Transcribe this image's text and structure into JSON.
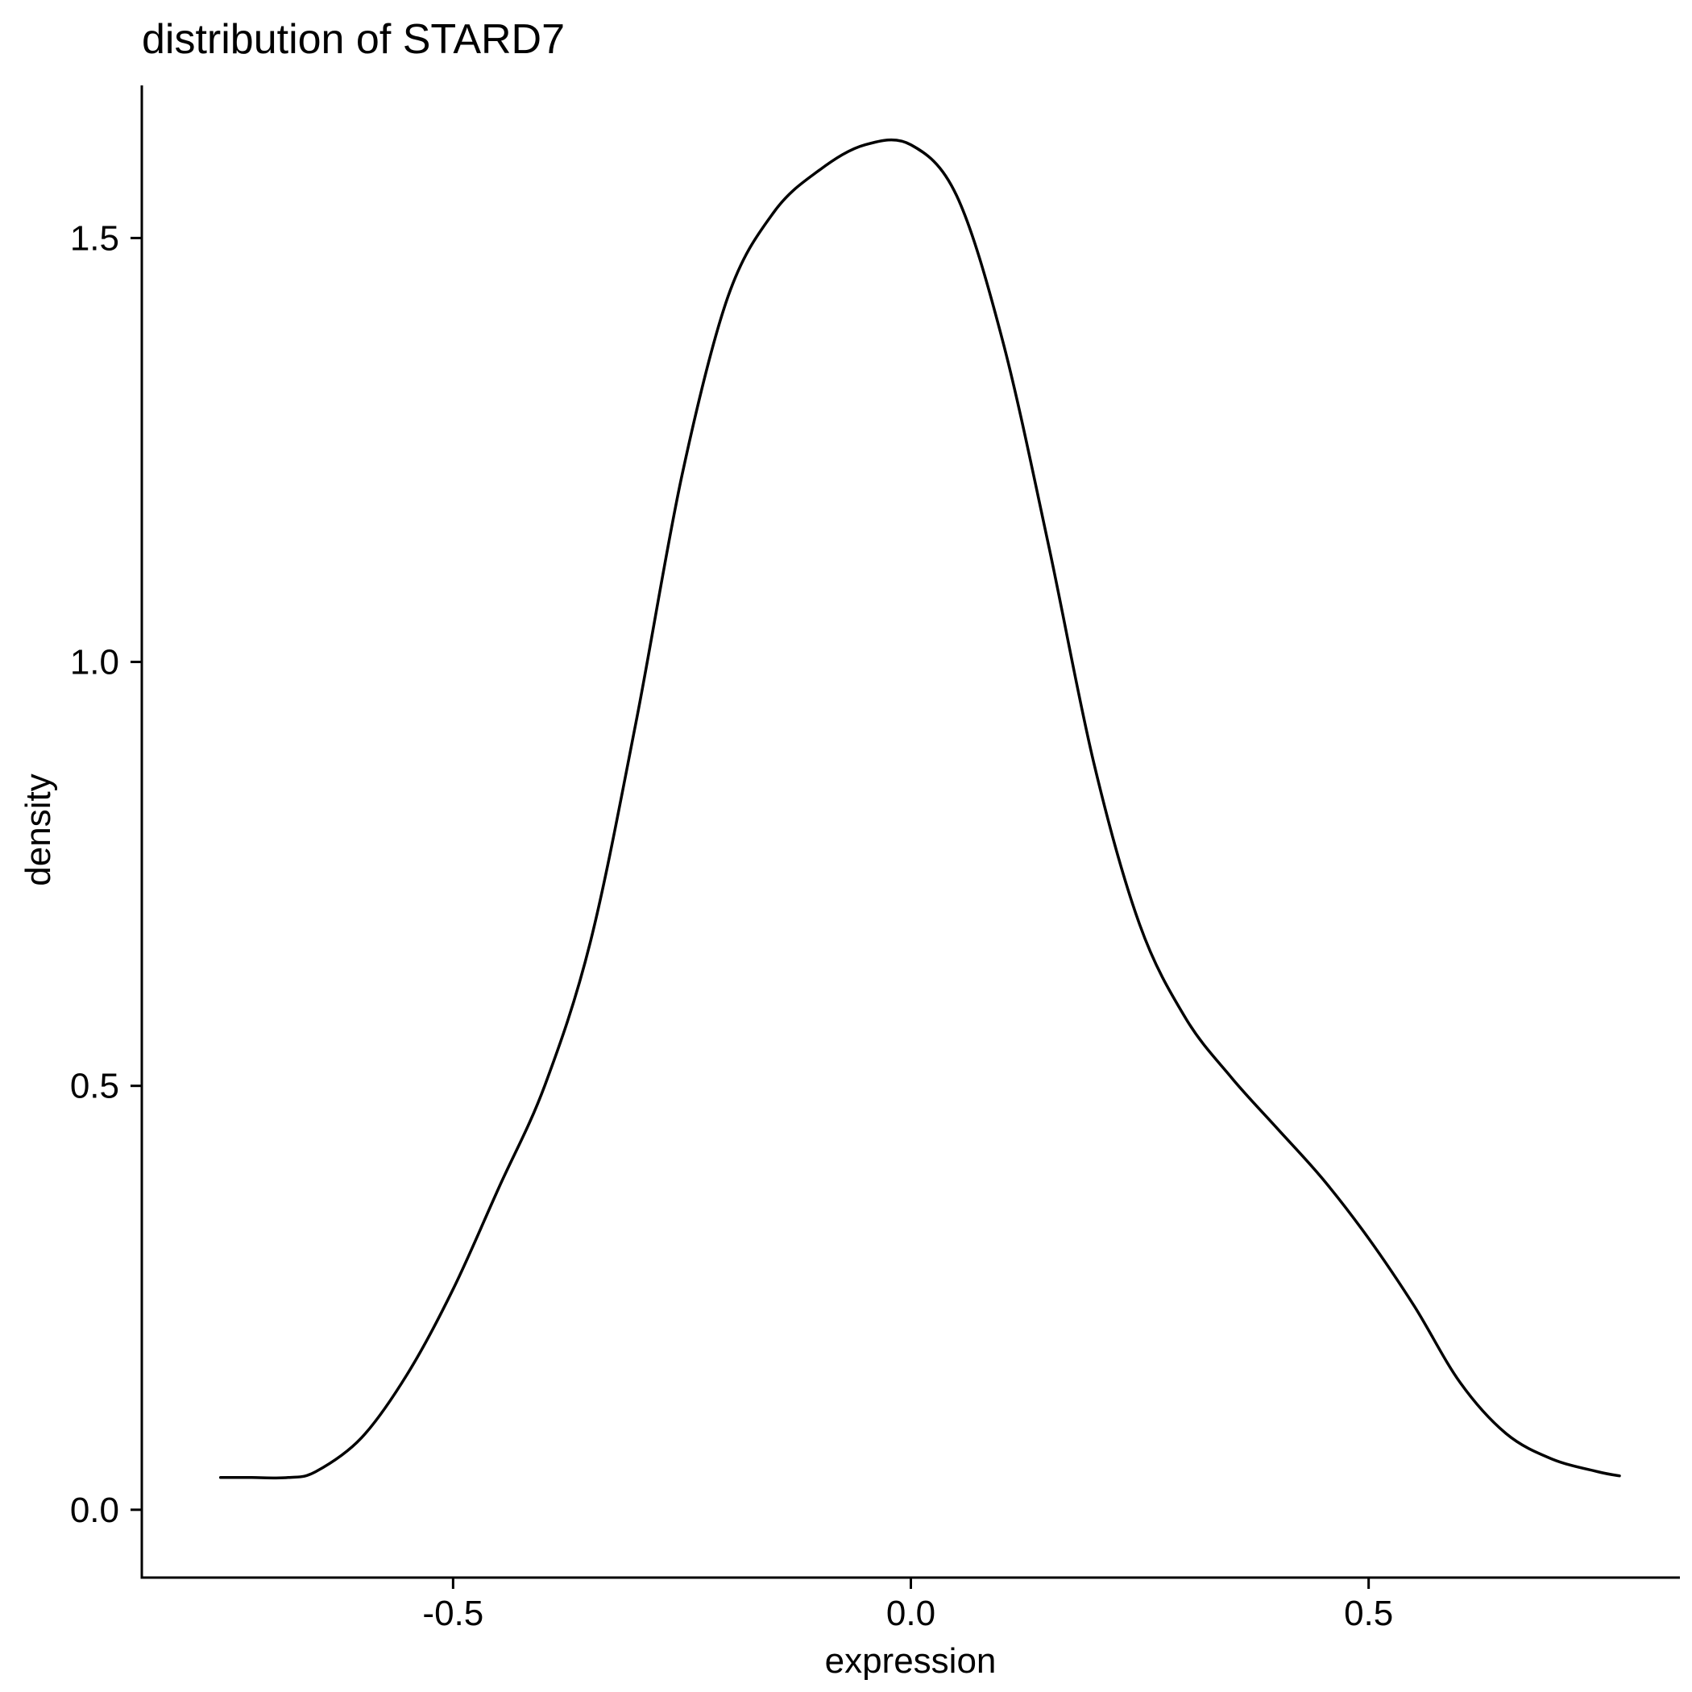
{
  "chart_data": {
    "type": "line",
    "title": "distribution of STARD7",
    "xlabel": "expression",
    "ylabel": "density",
    "xlim": [
      -0.84,
      0.84
    ],
    "ylim": [
      -0.08,
      1.68
    ],
    "xticks": [
      {
        "value": -0.5,
        "label": "-0.5"
      },
      {
        "value": 0.0,
        "label": "0.0"
      },
      {
        "value": 0.5,
        "label": "0.5"
      }
    ],
    "yticks": [
      {
        "value": 0.0,
        "label": "0.0"
      },
      {
        "value": 0.5,
        "label": "0.5"
      },
      {
        "value": 1.0,
        "label": "1.0"
      },
      {
        "value": 1.5,
        "label": "1.5"
      }
    ],
    "grid": false,
    "legend": "none",
    "line_color": "#000000",
    "series": [
      {
        "x": [
          -0.754,
          -0.72,
          -0.68,
          -0.65,
          -0.6,
          -0.55,
          -0.5,
          -0.45,
          -0.4,
          -0.35,
          -0.3,
          -0.25,
          -0.2,
          -0.15,
          -0.1,
          -0.05,
          0.0,
          0.05,
          0.1,
          0.15,
          0.2,
          0.25,
          0.3,
          0.35,
          0.4,
          0.45,
          0.5,
          0.55,
          0.6,
          0.65,
          0.7,
          0.75,
          0.774
        ],
        "y": [
          0.038,
          0.038,
          0.038,
          0.045,
          0.085,
          0.16,
          0.26,
          0.38,
          0.5,
          0.67,
          0.93,
          1.22,
          1.43,
          1.53,
          1.58,
          1.61,
          1.61,
          1.55,
          1.38,
          1.14,
          0.88,
          0.69,
          0.58,
          0.51,
          0.45,
          0.39,
          0.32,
          0.24,
          0.15,
          0.09,
          0.06,
          0.045,
          0.04
        ]
      }
    ]
  }
}
